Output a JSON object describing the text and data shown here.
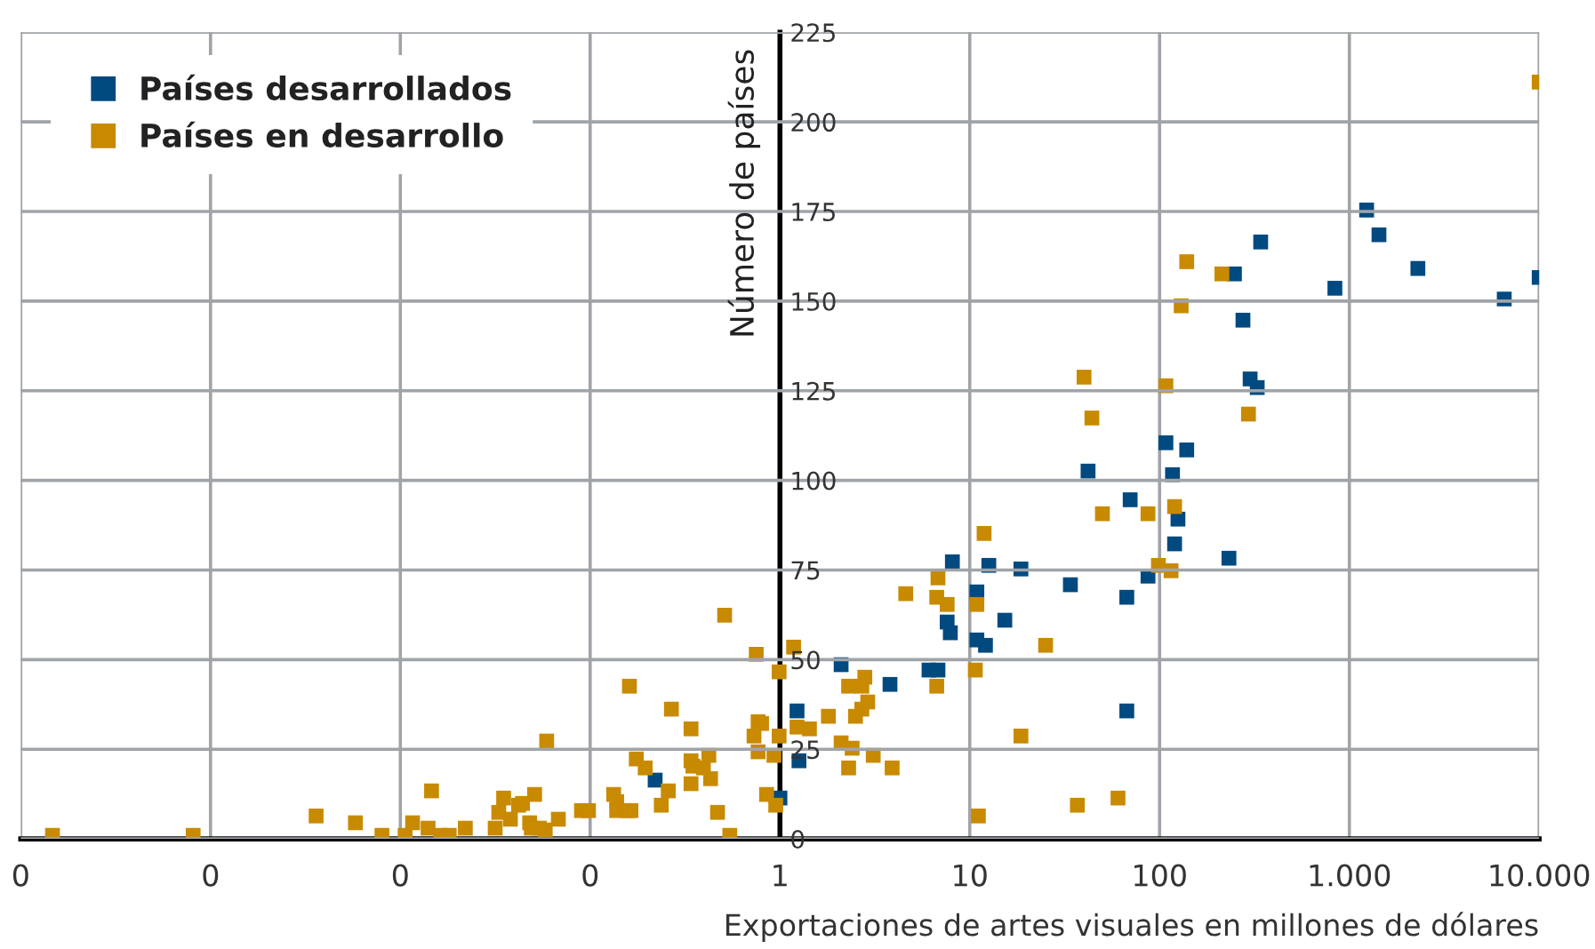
{
  "chart_data": {
    "type": "scatter",
    "xlabel": "Exportaciones de artes visuales en millones de dólares",
    "ylabel": "Número de países",
    "log": "x",
    "xlim": [
      0.0001,
      10000
    ],
    "ylim": [
      0,
      225
    ],
    "xticks": [
      {
        "value": 0.0001,
        "label": "0"
      },
      {
        "value": 0.001,
        "label": "0"
      },
      {
        "value": 0.01,
        "label": "0"
      },
      {
        "value": 0.1,
        "label": "0"
      },
      {
        "value": 1,
        "label": "1"
      },
      {
        "value": 10,
        "label": "10"
      },
      {
        "value": 100,
        "label": "100"
      },
      {
        "value": 1000,
        "label": "1.000"
      },
      {
        "value": 10000,
        "label": "10.000"
      }
    ],
    "yticks": [
      0,
      25,
      50,
      75,
      100,
      125,
      150,
      175,
      200,
      225
    ],
    "grid": true,
    "legend": "top left",
    "marker": "square",
    "series": [
      {
        "name": "Países desarrollados",
        "color": "#004a7f",
        "x": [
          1233,
          1432,
          341,
          248,
          839,
          2296,
          10000,
          6546,
          275,
          300,
          327,
          108,
          139,
          42,
          117,
          70,
          125,
          120,
          232,
          8.1,
          12.6,
          18.6,
          33.9,
          86.9,
          10.9,
          67.2,
          7.6,
          7.9,
          15.3,
          10.9,
          12.1,
          2.1,
          6.1,
          6.8,
          3.8,
          1.23,
          67.2,
          1.26,
          1.0,
          0.22
        ],
        "values": [
          175.4,
          168.5,
          166.5,
          157.6,
          153.6,
          159.1,
          156.6,
          150.6,
          144.7,
          128.3,
          125.9,
          110.5,
          108.5,
          102.6,
          101.6,
          94.6,
          89.2,
          82.3,
          78.3,
          77.3,
          76.3,
          75.3,
          70.9,
          73.3,
          68.9,
          67.4,
          60.5,
          57.5,
          61.0,
          55.5,
          54.0,
          48.6,
          47.1,
          47.1,
          43.1,
          35.7,
          35.7,
          21.8,
          11.4,
          16.4
        ]
      },
      {
        "name": "Países en desarrollo",
        "color": "#c88a00",
        "x": [
          10000,
          139,
          213,
          130,
          40,
          108,
          44,
          294,
          50,
          86.9,
          120,
          98.6,
          115,
          11.9,
          6.8,
          4.6,
          6.7,
          7.6,
          10.9,
          25.1,
          1.18,
          0.99,
          10.7,
          6.7,
          2.8,
          2.3,
          2.7,
          2.9,
          2.7,
          1.8,
          2.5,
          1.23,
          1.43,
          0.99,
          2.1,
          2.4,
          3.1,
          18.6,
          0.93,
          2.3,
          3.9,
          36.9,
          60.4,
          11.1,
          0.95,
          0.000147,
          0.00081,
          0.0036,
          0.0058,
          0.008,
          0.0106,
          0.0116,
          0.014,
          0.0163,
          0.0181,
          0.022,
          0.0146,
          0.0316,
          0.033,
          0.035,
          0.038,
          0.042,
          0.044,
          0.048,
          0.049,
          0.051,
          0.054,
          0.058,
          0.068,
          0.059,
          0.09,
          0.098,
          0.133,
          0.138,
          0.138,
          0.157,
          0.164,
          0.161,
          0.175,
          0.195,
          0.237,
          0.258,
          0.268,
          0.34,
          0.34,
          0.348,
          0.395,
          0.422,
          0.431,
          0.34,
          0.469,
          0.544,
          0.511,
          0.75,
          0.767,
          0.8,
          0.73,
          0.767,
          0.85
        ],
        "values": [
          211.1,
          161.0,
          157.6,
          148.7,
          128.8,
          126.4,
          117.4,
          118.5,
          90.7,
          90.7,
          92.7,
          76.3,
          74.8,
          85.2,
          72.8,
          68.4,
          67.4,
          65.4,
          65.4,
          54.0,
          53.5,
          46.6,
          47.1,
          42.6,
          45.1,
          42.6,
          42.6,
          38.2,
          36.2,
          34.2,
          34.2,
          31.2,
          30.7,
          28.7,
          26.8,
          25.3,
          23.3,
          28.7,
          23.3,
          19.8,
          19.8,
          9.4,
          11.4,
          6.4,
          9.4,
          1,
          1,
          6.4,
          4.5,
          1,
          1,
          4.5,
          3,
          1,
          1,
          3,
          13.4,
          3,
          7.4,
          11.4,
          5.5,
          9.4,
          9.9,
          4.5,
          3,
          12.4,
          3,
          2.5,
          5.5,
          27.3,
          7.9,
          7.9,
          12.4,
          10.4,
          7.9,
          7.9,
          7.9,
          42.6,
          22.3,
          19.8,
          9.4,
          13.4,
          36.2,
          30.7,
          21.8,
          20.3,
          19.8,
          23.3,
          16.8,
          15.4,
          7.4,
          1,
          62.4,
          51.5,
          32.7,
          32.2,
          28.7,
          24.3,
          12.4
        ]
      }
    ]
  }
}
